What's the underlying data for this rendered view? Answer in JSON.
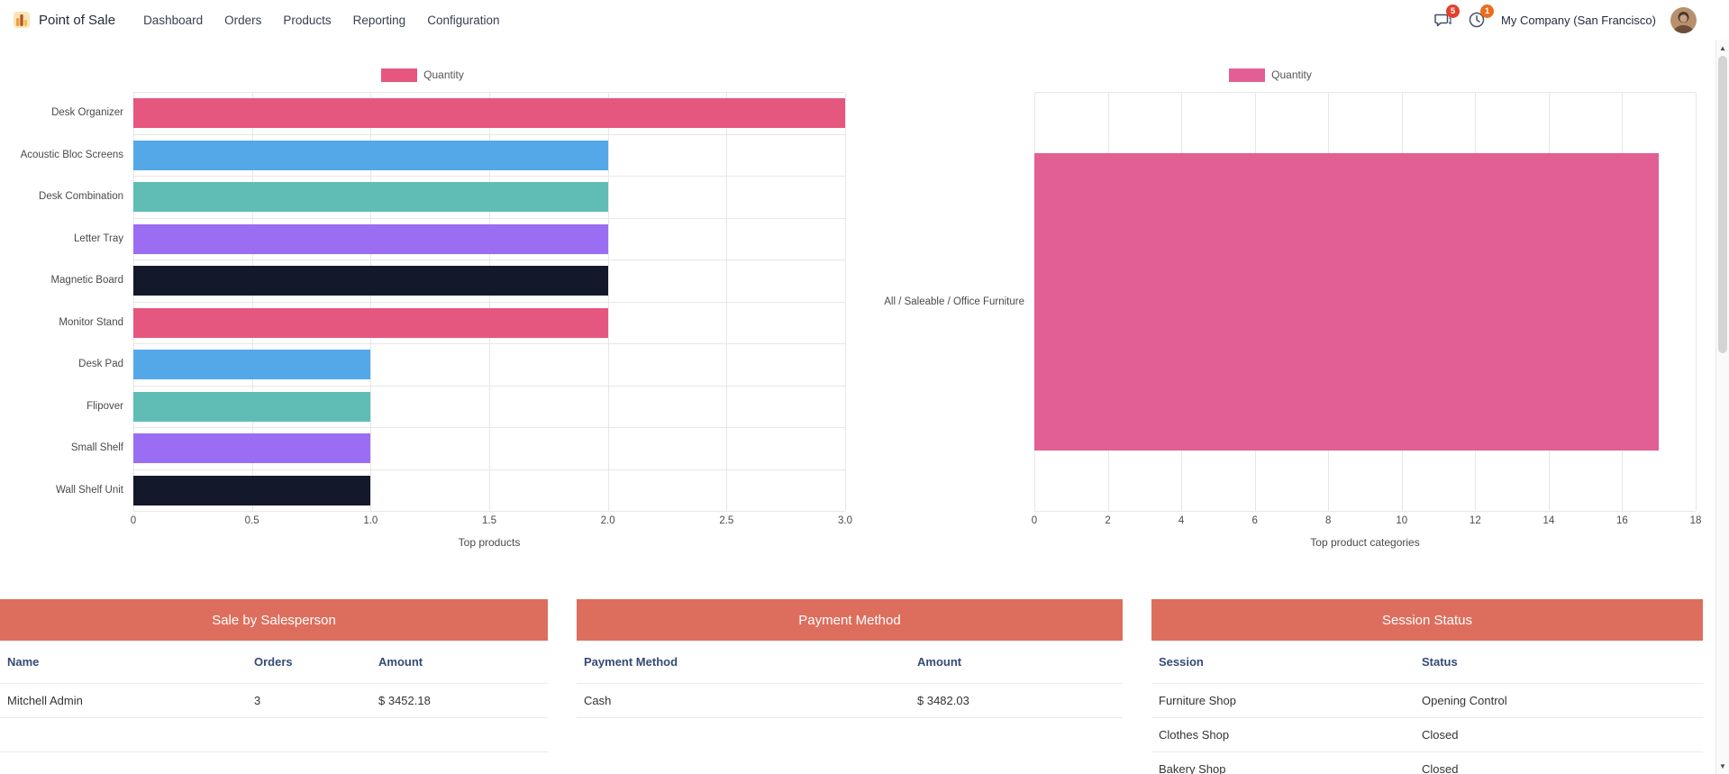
{
  "nav": {
    "app_name": "Point of Sale",
    "menu": [
      {
        "label": "Dashboard"
      },
      {
        "label": "Orders"
      },
      {
        "label": "Products"
      },
      {
        "label": "Reporting"
      },
      {
        "label": "Configuration"
      }
    ],
    "messages_badge": "5",
    "activities_badge": "1",
    "company": "My Company (San Francisco)"
  },
  "icons": {
    "messages": "chat-bubble-icon",
    "activities": "clock-icon",
    "scroll_up": "▲",
    "scroll_down": "▼"
  },
  "colors": {
    "table_header_bg": "#dd6e5d",
    "grid_line": "#e7e7e7"
  },
  "chart_data": [
    {
      "type": "bar",
      "orientation": "horizontal",
      "title": "Top products",
      "legend": "Quantity",
      "legend_color": "#e5577e",
      "categories": [
        "Desk Organizer",
        "Acoustic Bloc Screens",
        "Desk Combination",
        "Letter Tray",
        "Magnetic Board",
        "Monitor Stand",
        "Desk Pad",
        "Flipover",
        "Small Shelf",
        "Wall Shelf Unit"
      ],
      "values": [
        3,
        2,
        2,
        2,
        2,
        2,
        1,
        1,
        1,
        1
      ],
      "bar_colors": [
        "#e5577e",
        "#54a8e8",
        "#5fbdb5",
        "#9b6df2",
        "#13192a",
        "#e5577e",
        "#54a8e8",
        "#5fbdb5",
        "#9b6df2",
        "#13192a"
      ],
      "xlim": [
        0,
        3
      ],
      "xtick_values": [
        0,
        0.5,
        1,
        1.5,
        2,
        2.5,
        3
      ],
      "xtick_labels": [
        "0",
        "0.5",
        "1.0",
        "1.5",
        "2.0",
        "2.5",
        "3.0"
      ],
      "grid": true,
      "legend_position": "top"
    },
    {
      "type": "bar",
      "orientation": "horizontal",
      "title": "Top product categories",
      "legend": "Quantity",
      "legend_color": "#e25f93",
      "categories": [
        "All / Saleable / Office Furniture"
      ],
      "values": [
        17
      ],
      "bar_colors": [
        "#e25f93"
      ],
      "xlim": [
        0,
        18
      ],
      "xtick_values": [
        0,
        2,
        4,
        6,
        8,
        10,
        12,
        14,
        16,
        18
      ],
      "xtick_labels": [
        "0",
        "2",
        "4",
        "6",
        "8",
        "10",
        "12",
        "14",
        "16",
        "18"
      ],
      "grid": true,
      "legend_position": "top"
    }
  ],
  "tables": [
    {
      "title": "Sale by Salesperson",
      "columns": [
        "Name",
        "Orders",
        "Amount"
      ],
      "rows": [
        [
          "Mitchell Admin",
          "3",
          "$ 3452.18"
        ]
      ],
      "empty_rows": 1
    },
    {
      "title": "Payment Method",
      "columns": [
        "Payment Method",
        "Amount"
      ],
      "rows": [
        [
          "Cash",
          "$ 3482.03"
        ]
      ],
      "empty_rows": 0
    },
    {
      "title": "Session Status",
      "columns": [
        "Session",
        "Status"
      ],
      "rows": [
        [
          "Furniture Shop",
          "Opening Control"
        ],
        [
          "Clothes Shop",
          "Closed"
        ],
        [
          "Bakery Shop",
          "Closed"
        ]
      ],
      "empty_rows": 0
    }
  ]
}
